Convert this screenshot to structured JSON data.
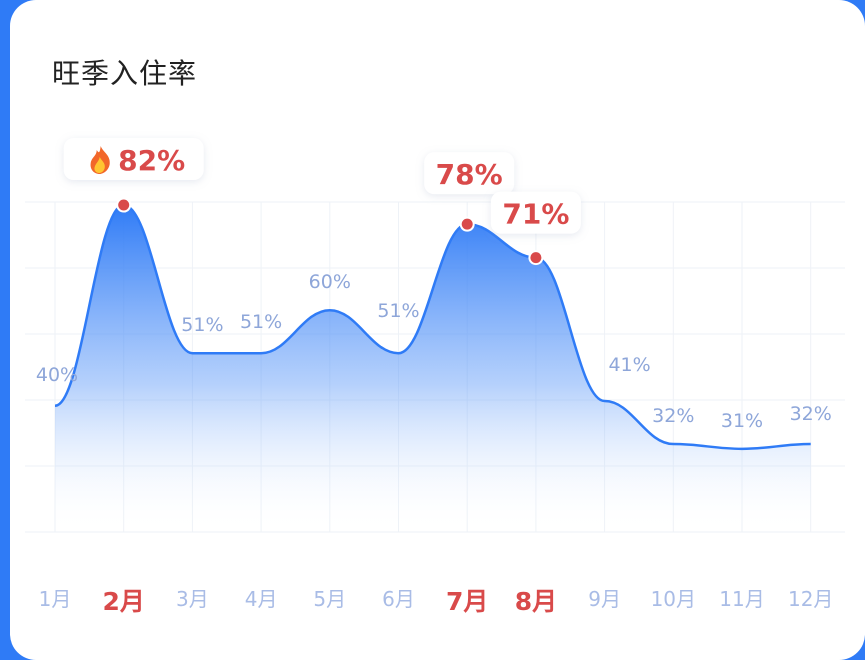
{
  "title": "旺季入住率",
  "chart_data": {
    "type": "area",
    "title": "旺季入住率",
    "categories": [
      "1月",
      "2月",
      "3月",
      "4月",
      "5月",
      "6月",
      "7月",
      "8月",
      "9月",
      "10月",
      "11月",
      "12月"
    ],
    "values": [
      40,
      82,
      51,
      51,
      60,
      51,
      78,
      71,
      41,
      32,
      31,
      32
    ],
    "value_labels": [
      "40%",
      "82%",
      "51%",
      "51%",
      "60%",
      "51%",
      "78%",
      "71%",
      "41%",
      "32%",
      "31%",
      "32%"
    ],
    "highlighted": [
      "2月",
      "7月",
      "8月"
    ],
    "peak_icon": "fire-icon",
    "ylim": [
      0,
      100
    ],
    "grid": true,
    "colors": {
      "line": "#2f7bf6",
      "fill_top": "#2f7bf6",
      "highlight": "#d94a4a",
      "tick": "#a9bce6",
      "label": "#8ea6d9",
      "grid": "#eef2f7"
    }
  }
}
